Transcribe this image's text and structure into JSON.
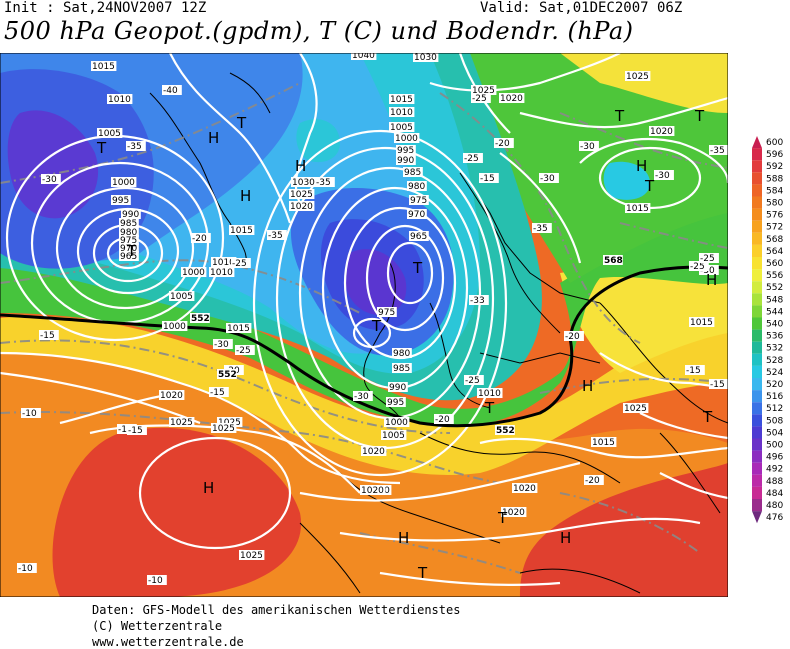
{
  "header": {
    "init": "Init : Sat,24NOV2007 12Z",
    "valid": "Valid: Sat,01DEC2007 06Z",
    "title": "500 hPa Geopot.(gpdm), T (C) und Bodendr. (hPa)"
  },
  "footer": {
    "line1": "Daten: GFS-Modell des amerikanischen Wetterdienstes",
    "line2": "(C) Wetterzentrale",
    "line3": "www.wetterzentrale.de"
  },
  "legend": {
    "values": [
      "600",
      "596",
      "592",
      "588",
      "584",
      "580",
      "576",
      "572",
      "568",
      "564",
      "560",
      "556",
      "552",
      "548",
      "544",
      "540",
      "536",
      "532",
      "528",
      "524",
      "520",
      "516",
      "512",
      "508",
      "504",
      "500",
      "496",
      "492",
      "488",
      "484",
      "480",
      "476"
    ],
    "colors": [
      "#c81e50",
      "#d8284a",
      "#e23b3c",
      "#e8502f",
      "#ee6526",
      "#f17a20",
      "#f48d1e",
      "#f7a21f",
      "#f9b824",
      "#fbcf2b",
      "#f8e232",
      "#efef3c",
      "#d2ec3f",
      "#a9e33c",
      "#7ed637",
      "#4fc739",
      "#2bbb6a",
      "#1fb99a",
      "#1fc2c4",
      "#28c9e3",
      "#3ab8ef",
      "#3c94ec",
      "#3a72e6",
      "#3a50dc",
      "#4d3bd2",
      "#6a32c8",
      "#8b2dc0",
      "#a82ab8",
      "#bc2aa8",
      "#c82a94",
      "#9a2c8c",
      "#6e2a7e"
    ]
  },
  "map": {
    "pressure_labels": [
      "1015",
      "1010",
      "1005",
      "1000",
      "995",
      "990",
      "985",
      "980",
      "975",
      "970",
      "965",
      "1015",
      "1010",
      "1005",
      "1000",
      "995",
      "990",
      "985",
      "980",
      "975",
      "970",
      "965",
      "1030",
      "1025",
      "1020",
      "1040",
      "1030",
      "1025",
      "1020",
      "1015",
      "1010",
      "1000",
      "1005",
      "1015",
      "1010",
      "1000",
      "985",
      "980",
      "975",
      "1025",
      "1020",
      "1015",
      "1020",
      "1025",
      "1020",
      "1015",
      "1025",
      "1025",
      "1020",
      "1020",
      "1025",
      "1025",
      "1015",
      "1020",
      "1015",
      "1015",
      "1010",
      "1005",
      "1000",
      "995",
      "990",
      "985",
      "980",
      "975",
      "1010",
      "1020",
      "1010",
      "1005",
      "1000",
      "995",
      "990"
    ],
    "temp_labels": [
      "-40",
      "-35",
      "-30",
      "-25",
      "-20",
      "-15",
      "-10",
      "-35",
      "-30",
      "-25",
      "-20",
      "-15",
      "-10",
      "-35",
      "-30",
      "-25",
      "-20",
      "-15",
      "-30",
      "-35",
      "-25",
      "-25",
      "-30",
      "-35",
      "-40",
      "-35",
      "-30",
      "-25",
      "-20",
      "-15",
      "-10",
      "-15",
      "-15",
      "-10",
      "-10",
      "-20",
      "-20",
      "-15",
      "-30",
      "-35",
      "-30",
      "-25",
      "-20",
      "-15",
      "-30",
      "-33",
      "-25"
    ],
    "high_labels": [
      "H",
      "H",
      "H",
      "H",
      "H",
      "H",
      "H",
      "H",
      "H"
    ],
    "low_labels": [
      "T",
      "T",
      "T",
      "T",
      "T",
      "T",
      "T",
      "T",
      "T",
      "T",
      "T",
      "T"
    ],
    "geopot_labels": [
      "552",
      "552",
      "552",
      "568"
    ]
  }
}
